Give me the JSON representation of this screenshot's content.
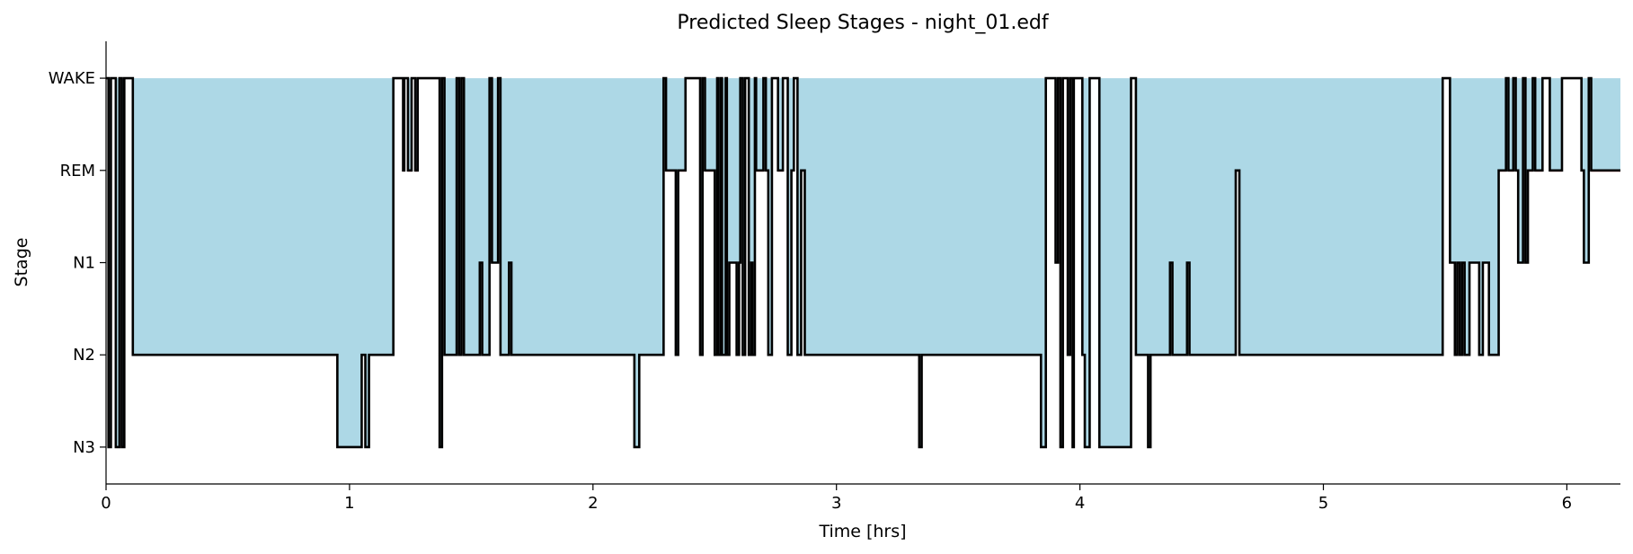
{
  "chart_data": {
    "type": "line",
    "title": "Predicted Sleep Stages - night_01.edf",
    "xlabel": "Time [hrs]",
    "ylabel": "Stage",
    "xlim": [
      0,
      6.22
    ],
    "x_ticks": [
      "0",
      "1",
      "2",
      "3",
      "4",
      "5",
      "6"
    ],
    "x_tick_values": [
      0,
      1,
      2,
      3,
      4,
      5,
      6
    ],
    "stages": [
      "WAKE",
      "REM",
      "N1",
      "N2",
      "N3"
    ],
    "y_tick_values": [
      4,
      3,
      2,
      1,
      0
    ],
    "ylim": [
      -0.4,
      4.4
    ],
    "grid": false,
    "step_color": "#000000",
    "fill_color": "#add8e6",
    "rem_color": "#e00000",
    "hypnogram": [
      [
        0.0,
        4
      ],
      [
        0.01,
        0
      ],
      [
        0.02,
        4
      ],
      [
        0.04,
        0
      ],
      [
        0.055,
        4
      ],
      [
        0.065,
        0
      ],
      [
        0.075,
        4
      ],
      [
        0.11,
        1
      ],
      [
        0.95,
        0
      ],
      [
        1.05,
        1
      ],
      [
        1.065,
        0
      ],
      [
        1.08,
        1
      ],
      [
        1.18,
        4
      ],
      [
        1.22,
        3
      ],
      [
        1.225,
        4
      ],
      [
        1.24,
        3
      ],
      [
        1.255,
        4
      ],
      [
        1.27,
        3
      ],
      [
        1.28,
        4
      ],
      [
        1.37,
        0
      ],
      [
        1.38,
        4
      ],
      [
        1.39,
        1
      ],
      [
        1.44,
        4
      ],
      [
        1.45,
        1
      ],
      [
        1.46,
        4
      ],
      [
        1.47,
        1
      ],
      [
        1.535,
        2
      ],
      [
        1.545,
        1
      ],
      [
        1.575,
        4
      ],
      [
        1.585,
        2
      ],
      [
        1.61,
        4
      ],
      [
        1.62,
        1
      ],
      [
        1.655,
        2
      ],
      [
        1.665,
        1
      ],
      [
        2.17,
        0
      ],
      [
        2.19,
        1
      ],
      [
        2.29,
        4
      ],
      [
        2.3,
        3
      ],
      [
        2.34,
        1
      ],
      [
        2.35,
        3
      ],
      [
        2.38,
        4
      ],
      [
        2.44,
        1
      ],
      [
        2.45,
        4
      ],
      [
        2.46,
        3
      ],
      [
        2.5,
        1
      ],
      [
        2.51,
        4
      ],
      [
        2.515,
        1
      ],
      [
        2.525,
        4
      ],
      [
        2.53,
        1
      ],
      [
        2.545,
        4
      ],
      [
        2.55,
        1
      ],
      [
        2.56,
        2
      ],
      [
        2.59,
        1
      ],
      [
        2.6,
        2
      ],
      [
        2.605,
        4
      ],
      [
        2.615,
        1
      ],
      [
        2.625,
        4
      ],
      [
        2.64,
        1
      ],
      [
        2.65,
        2
      ],
      [
        2.655,
        1
      ],
      [
        2.665,
        4
      ],
      [
        2.67,
        3
      ],
      [
        2.7,
        4
      ],
      [
        2.71,
        3
      ],
      [
        2.72,
        1
      ],
      [
        2.735,
        4
      ],
      [
        2.76,
        3
      ],
      [
        2.78,
        4
      ],
      [
        2.8,
        1
      ],
      [
        2.815,
        3
      ],
      [
        2.825,
        4
      ],
      [
        2.84,
        1
      ],
      [
        2.855,
        3
      ],
      [
        2.87,
        1
      ],
      [
        3.34,
        0
      ],
      [
        3.35,
        1
      ],
      [
        3.84,
        0
      ],
      [
        3.86,
        4
      ],
      [
        3.9,
        2
      ],
      [
        3.91,
        4
      ],
      [
        3.92,
        0
      ],
      [
        3.93,
        4
      ],
      [
        3.95,
        1
      ],
      [
        3.96,
        4
      ],
      [
        3.97,
        0
      ],
      [
        3.975,
        4
      ],
      [
        4.01,
        1
      ],
      [
        4.02,
        0
      ],
      [
        4.04,
        4
      ],
      [
        4.08,
        0
      ],
      [
        4.21,
        4
      ],
      [
        4.23,
        1
      ],
      [
        4.28,
        0
      ],
      [
        4.29,
        1
      ],
      [
        4.37,
        2
      ],
      [
        4.38,
        1
      ],
      [
        4.44,
        2
      ],
      [
        4.45,
        1
      ],
      [
        4.64,
        3
      ],
      [
        4.655,
        1
      ],
      [
        5.49,
        4
      ],
      [
        5.52,
        2
      ],
      [
        5.54,
        1
      ],
      [
        5.55,
        2
      ],
      [
        5.56,
        1
      ],
      [
        5.57,
        2
      ],
      [
        5.58,
        1
      ],
      [
        5.6,
        2
      ],
      [
        5.64,
        1
      ],
      [
        5.655,
        2
      ],
      [
        5.68,
        1
      ],
      [
        5.72,
        3
      ],
      [
        5.75,
        4
      ],
      [
        5.76,
        3
      ],
      [
        5.78,
        4
      ],
      [
        5.79,
        3
      ],
      [
        5.8,
        2
      ],
      [
        5.82,
        4
      ],
      [
        5.83,
        2
      ],
      [
        5.84,
        3
      ],
      [
        5.86,
        4
      ],
      [
        5.87,
        3
      ],
      [
        5.9,
        4
      ],
      [
        5.93,
        3
      ],
      [
        5.98,
        4
      ],
      [
        6.06,
        3
      ],
      [
        6.07,
        2
      ],
      [
        6.09,
        4
      ],
      [
        6.1,
        3
      ],
      [
        6.22,
        3
      ]
    ]
  }
}
